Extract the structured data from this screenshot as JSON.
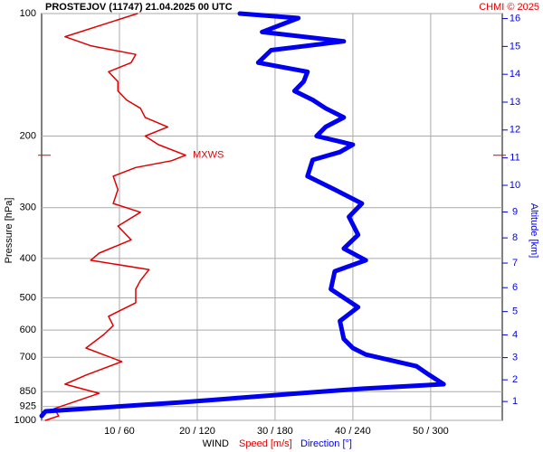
{
  "chart_data": {
    "type": "line",
    "title": "PROSTEJOV (11747)    21.04.2025 00 UTC",
    "credit": "CHMI © 2025",
    "y_label": "Pressure [hPa]",
    "y2_label": "Altitude [km]",
    "x_label": "WIND",
    "x_label_speed": "Speed [m/s]",
    "x_label_direction": "Direction [°]",
    "log_y": true,
    "ylim": [
      1000,
      100
    ],
    "yticks": [
      100,
      200,
      300,
      400,
      500,
      600,
      700,
      850,
      925,
      1000
    ],
    "xlim": [
      0,
      59.2
    ],
    "x2lim": [
      0,
      355.2
    ],
    "xticks": [
      {
        "value": 10,
        "label": "10 / 60"
      },
      {
        "value": 20,
        "label": "20 / 120"
      },
      {
        "value": 30,
        "label": "30 / 180"
      },
      {
        "value": 40,
        "label": "40 / 240"
      },
      {
        "value": 50,
        "label": "50 / 300"
      }
    ],
    "altitude_ticks": [
      1,
      2,
      3,
      4,
      5,
      6,
      7,
      8,
      9,
      10,
      11,
      12,
      13,
      14,
      15,
      16
    ],
    "grid": true,
    "mxws": {
      "label": "MXWS",
      "pressure": 223
    },
    "series": [
      {
        "name": "Speed [m/s]",
        "color": "#e00000",
        "pressure": [
          100,
          114,
          120,
          126,
          132,
          139,
          147,
          155,
          163,
          171,
          180,
          190,
          200,
          210,
          223,
          230,
          239,
          251,
          271,
          293,
          308,
          333,
          360,
          388,
          404,
          426,
          453,
          476,
          514,
          555,
          585,
          615,
          664,
          717,
          774,
          815,
          858,
          903,
          936,
          975,
          1000
        ],
        "values": [
          12.3,
          3.0,
          6.3,
          12.1,
          11.5,
          8.6,
          9.8,
          9.8,
          10.9,
          12.7,
          13.3,
          16.2,
          13.3,
          15.0,
          18.5,
          16.7,
          12.1,
          9.2,
          9.8,
          9.2,
          12.7,
          9.8,
          11.5,
          7.4,
          6.3,
          13.8,
          12.7,
          12.1,
          12.1,
          8.6,
          9.2,
          8.0,
          5.7,
          10.3,
          5.7,
          3.0,
          7.4,
          4.0,
          1.6,
          2.2,
          0.5
        ]
      },
      {
        "name": "Direction [°]",
        "color": "#0000ee",
        "axis": "x2",
        "pressure": [
          100,
          102.6,
          111,
          117,
          123,
          132,
          139,
          147,
          155,
          163,
          171,
          180,
          190,
          200,
          210,
          219,
          229,
          251,
          271,
          293,
          316,
          350,
          378,
          404,
          430,
          476,
          527,
          570,
          631,
          664,
          689,
          736,
          774,
          815,
          836,
          858,
          903,
          950,
          975
        ],
        "values": [
          152.8,
          198,
          170,
          233,
          177,
          167,
          205,
          202,
          195,
          209,
          219,
          233,
          219,
          212,
          240,
          230,
          209,
          205,
          226,
          247,
          237,
          244,
          233,
          250,
          226,
          223,
          244,
          230,
          233,
          240,
          250,
          289,
          299,
          310,
          247,
          198,
          107,
          3,
          0
        ]
      }
    ]
  }
}
